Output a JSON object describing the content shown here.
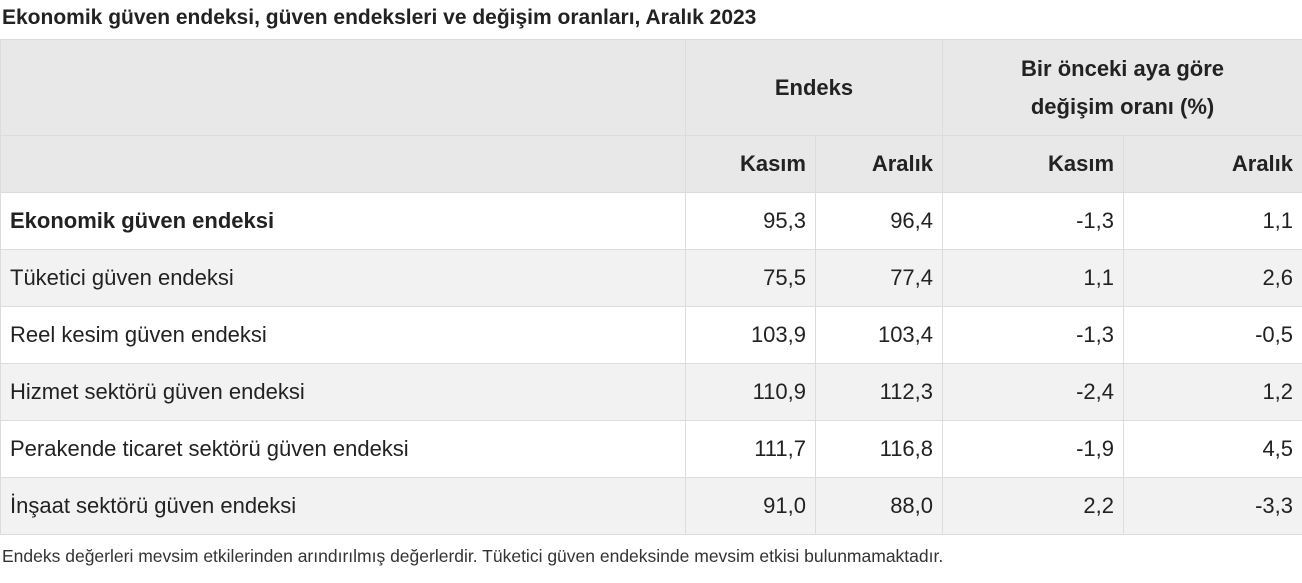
{
  "title": "Ekonomik güven endeksi, güven endeksleri ve değişim oranları, Aralık 2023",
  "table": {
    "header": {
      "groups": [
        "Endeks",
        "Bir önceki aya göre değişim oranı (%)"
      ],
      "columns": [
        "Kasım",
        "Aralık",
        "Kasım",
        "Aralık"
      ]
    },
    "rows": [
      [
        "Ekonomik güven endeksi",
        "95,3",
        "96,4",
        "-1,3",
        "1,1"
      ],
      [
        "Tüketici güven endeksi",
        "75,5",
        "77,4",
        "1,1",
        "2,6"
      ],
      [
        "Reel kesim güven endeksi",
        "103,9",
        "103,4",
        "-1,3",
        "-0,5"
      ],
      [
        "Hizmet sektörü güven endeksi",
        "110,9",
        "112,3",
        "-2,4",
        "1,2"
      ],
      [
        "Perakende ticaret sektörü güven endeksi",
        "111,7",
        "116,8",
        "-1,9",
        "4,5"
      ],
      [
        "İnşaat sektörü güven endeksi",
        "91,0",
        "88,0",
        "2,2",
        "-3,3"
      ]
    ]
  },
  "footnote": "Endeks değerleri mevsim etkilerinden arındırılmış değerlerdir. Tüketici güven endeksinde mevsim etkisi bulunmamaktadır."
}
